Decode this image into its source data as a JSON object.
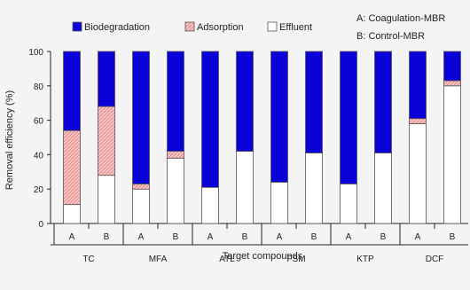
{
  "chart_data": {
    "type": "bar",
    "stacked": true,
    "xlabel": "Target compounds",
    "ylabel": "Removal efficiency (%)",
    "ylim": [
      0,
      100
    ],
    "yticks": [
      "0",
      "20",
      "40",
      "60",
      "80",
      "100"
    ],
    "grid": false,
    "legend": {
      "placement": "top",
      "items": [
        "Biodegradation",
        "Adsorption",
        "Effluent"
      ]
    },
    "annotation": [
      "A: Coagulation-MBR",
      "B: Control-MBR"
    ],
    "groups": [
      "TC",
      "MFA",
      "ATL",
      "FSM",
      "KTP",
      "DCF"
    ],
    "subgroups": [
      "A",
      "B"
    ],
    "series": [
      {
        "name": "Effluent",
        "color": "#ffffff",
        "values": [
          11,
          28,
          20,
          38,
          21,
          42,
          24,
          41,
          23,
          41,
          58,
          80
        ]
      },
      {
        "name": "Adsorption",
        "color": "#f4b6b6",
        "values": [
          43,
          40,
          3,
          4,
          0,
          0,
          0,
          0,
          0,
          0,
          3,
          3
        ]
      },
      {
        "name": "Biodegradation",
        "color": "#0a00d8",
        "values": [
          46,
          32,
          77,
          58,
          79,
          58,
          76,
          59,
          77,
          59,
          39,
          17
        ]
      }
    ]
  }
}
